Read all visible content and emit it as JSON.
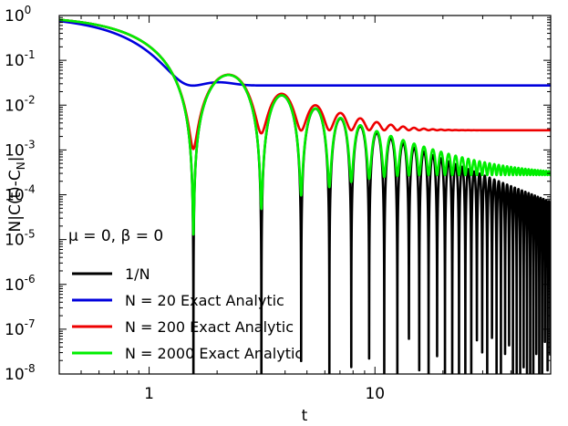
{
  "chart_data": {
    "type": "line",
    "title": "",
    "xlabel": "t",
    "ylabel": "N|C(t)-C_N|",
    "ylabel_parts": {
      "main": "N|C(t)-C",
      "sub": "N",
      "tail": "|"
    },
    "x_scale": "log",
    "y_scale": "log",
    "xlim": [
      0.4,
      60
    ],
    "ylim": [
      1e-08,
      1
    ],
    "x_ticks": [
      {
        "value": 1,
        "label": "1"
      },
      {
        "value": 10,
        "label": "10"
      }
    ],
    "y_ticks": [
      {
        "value": 1,
        "base": "10",
        "exp": "0"
      },
      {
        "value": 0.1,
        "base": "10",
        "exp": "-1"
      },
      {
        "value": 0.01,
        "base": "10",
        "exp": "-2"
      },
      {
        "value": 0.001,
        "base": "10",
        "exp": "-3"
      },
      {
        "value": 0.0001,
        "base": "10",
        "exp": "-4"
      },
      {
        "value": 1e-05,
        "base": "10",
        "exp": "-5"
      },
      {
        "value": 1e-06,
        "base": "10",
        "exp": "-6"
      },
      {
        "value": 1e-07,
        "base": "10",
        "exp": "-7"
      },
      {
        "value": 1e-08,
        "base": "10",
        "exp": "-8"
      }
    ],
    "annotation": "μ = 0, β = 0",
    "legend_position": "bottom-left",
    "grid": false,
    "series": [
      {
        "name": "1/N",
        "color": "#000000",
        "N": null
      },
      {
        "name": "N = 20 Exact Analytic",
        "color": "#0000dd",
        "N": 20
      },
      {
        "name": "N = 200 Exact Analytic",
        "color": "#ee0000",
        "N": 200
      },
      {
        "name": "N = 2000 Exact Analytic",
        "color": "#00ee00",
        "N": 2000
      }
    ]
  }
}
